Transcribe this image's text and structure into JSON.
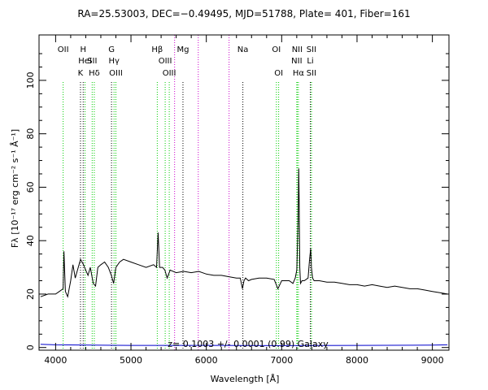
{
  "chart_data": {
    "type": "line",
    "title": "RA=25.53003, DEC=−0.49495, MJD=51788, Plate= 401, Fiber=161",
    "xlabel": "Wavelength [Å]",
    "ylabel": "Fλ [10⁻¹⁷ erg cm⁻² s⁻¹ Å⁻¹]",
    "xlim": [
      3780,
      9220
    ],
    "ylim": [
      -1,
      117
    ],
    "xticks": [
      4000,
      5000,
      6000,
      7000,
      8000,
      9000
    ],
    "yticks": [
      0,
      20,
      40,
      60,
      80,
      100
    ],
    "annotation": "z= 0.1003 +/- 0.0001 (0.99)  Galaxy",
    "series": [
      {
        "role": "flux",
        "color": "#000000",
        "x": [
          3800,
          3900,
          4000,
          4050,
          4100,
          4110,
          4130,
          4160,
          4200,
          4230,
          4260,
          4300,
          4330,
          4370,
          4400,
          4430,
          4460,
          4500,
          4530,
          4560,
          4600,
          4650,
          4700,
          4740,
          4770,
          4800,
          4850,
          4900,
          5000,
          5100,
          5200,
          5300,
          5340,
          5360,
          5380,
          5420,
          5450,
          5480,
          5520,
          5600,
          5700,
          5800,
          5900,
          6000,
          6100,
          6200,
          6300,
          6400,
          6450,
          6480,
          6500,
          6520,
          6560,
          6600,
          6700,
          6800,
          6900,
          6950,
          7000,
          7100,
          7150,
          7180,
          7200,
          7218,
          7226,
          7232,
          7240,
          7250,
          7270,
          7300,
          7350,
          7370,
          7385,
          7395,
          7410,
          7430,
          7500,
          7600,
          7700,
          7800,
          7900,
          8000,
          8100,
          8200,
          8300,
          8400,
          8500,
          8600,
          8700,
          8800,
          8900,
          9000,
          9100,
          9200
        ],
        "y": [
          19,
          20,
          20,
          21,
          22,
          36,
          21,
          19,
          25,
          31,
          26,
          30,
          33,
          31,
          29,
          27,
          30,
          24,
          23,
          30,
          31,
          32,
          30,
          27,
          24,
          30,
          32,
          33,
          32,
          31,
          30,
          31,
          30,
          43,
          30,
          30,
          29,
          26,
          29,
          28,
          28.5,
          28,
          28.5,
          27.5,
          27,
          27,
          26.5,
          26,
          26,
          22,
          25,
          26,
          25,
          25.5,
          26,
          26,
          25.5,
          22,
          25,
          25,
          24,
          26,
          29,
          48,
          67,
          55,
          30,
          24,
          25,
          25,
          26,
          33,
          37,
          30,
          26,
          25,
          25,
          24.5,
          24.5,
          24,
          23.5,
          23.5,
          23,
          23.5,
          23,
          22.5,
          23,
          22.5,
          22,
          22,
          21.5,
          21,
          20.5,
          20
        ]
      },
      {
        "role": "error",
        "color": "#0000cc",
        "x": [
          3800,
          4000,
          5000,
          6000,
          7000,
          8000,
          9000,
          9200
        ],
        "y": [
          1.2,
          1.0,
          0.8,
          0.8,
          0.7,
          0.8,
          0.9,
          1.0
        ]
      }
    ],
    "spectral_lines": [
      {
        "label": "OII",
        "wavelength": 4100,
        "kind": "emission",
        "row": 1
      },
      {
        "label": "H",
        "wavelength": 4366,
        "kind": "absorption",
        "row": 1
      },
      {
        "label": "HeI",
        "wavelength": 4390,
        "kind": "emission",
        "row": 2
      },
      {
        "label": "K",
        "wavelength": 4330,
        "kind": "absorption",
        "row": 3
      },
      {
        "label": "SII",
        "wavelength": 4485,
        "kind": "emission",
        "row": 2
      },
      {
        "label": "Hδ",
        "wavelength": 4513,
        "kind": "emission",
        "row": 3
      },
      {
        "label": "G",
        "wavelength": 4742,
        "kind": "absorption",
        "row": 1
      },
      {
        "label": "Hγ",
        "wavelength": 4775,
        "kind": "emission",
        "row": 2
      },
      {
        "label": "OIII",
        "wavelength": 4800,
        "kind": "emission",
        "row": 3
      },
      {
        "label": "Hβ",
        "wavelength": 5349,
        "kind": "emission",
        "row": 1
      },
      {
        "label": "OIII",
        "wavelength": 5454,
        "kind": "emission",
        "row": 2
      },
      {
        "label": "OIII",
        "wavelength": 5508,
        "kind": "emission",
        "row": 3
      },
      {
        "label": "Mg",
        "wavelength": 5690,
        "kind": "absorption",
        "row": 1
      },
      {
        "label": "Na",
        "wavelength": 6485,
        "kind": "absorption",
        "row": 1
      },
      {
        "label": "OI",
        "wavelength": 6930,
        "kind": "emission",
        "row": 1
      },
      {
        "label": "OI",
        "wavelength": 6960,
        "kind": "emission",
        "row": 3
      },
      {
        "label": "NII",
        "wavelength": 7206,
        "kind": "emission",
        "row": 1
      },
      {
        "label": "NII",
        "wavelength": 7200,
        "kind": "emission",
        "row": 2
      },
      {
        "label": "Hα",
        "wavelength": 7222,
        "kind": "emission",
        "row": 3
      },
      {
        "label": "SII",
        "wavelength": 7395,
        "kind": "emission",
        "row": 1
      },
      {
        "label": "Li",
        "wavelength": 7380,
        "kind": "absorption",
        "row": 2
      },
      {
        "label": "SII",
        "wavelength": 7395,
        "kind": "emission",
        "row": 3
      }
    ],
    "sky_lines": [
      5579,
      5893,
      6302
    ],
    "colors": {
      "emission": "#00cc00",
      "absorption": "#000000",
      "sky": "#cc00cc",
      "flux": "#000000",
      "error": "#0000cc"
    }
  }
}
